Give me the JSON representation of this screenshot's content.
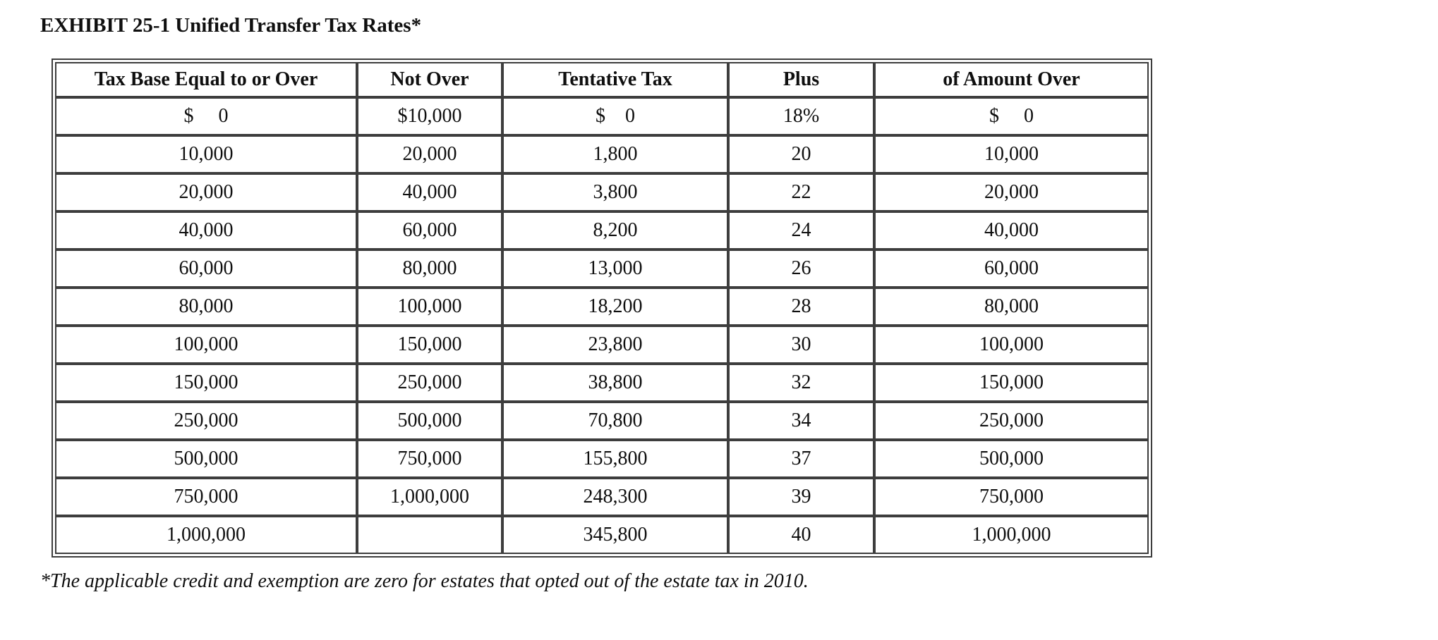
{
  "title": "EXHIBIT 25-1 Unified Transfer Tax Rates*",
  "footnote": "*The applicable credit and exemption are zero for estates that opted out of the estate tax in 2010.",
  "colors": {
    "border": "#3d3d3d",
    "text": "#0f0f0f",
    "background": "#ffffff"
  },
  "table": {
    "headers": [
      "Tax Base Equal to or Over",
      "Not Over",
      "Tentative Tax",
      "Plus",
      "of Amount Over"
    ],
    "rows": [
      [
        "$     0",
        "$10,000",
        "$    0",
        "18%",
        "$     0"
      ],
      [
        "10,000",
        "20,000",
        "1,800",
        "20",
        "10,000"
      ],
      [
        "20,000",
        "40,000",
        "3,800",
        "22",
        "20,000"
      ],
      [
        "40,000",
        "60,000",
        "8,200",
        "24",
        "40,000"
      ],
      [
        "60,000",
        "80,000",
        "13,000",
        "26",
        "60,000"
      ],
      [
        "80,000",
        "100,000",
        "18,200",
        "28",
        "80,000"
      ],
      [
        "100,000",
        "150,000",
        "23,800",
        "30",
        "100,000"
      ],
      [
        "150,000",
        "250,000",
        "38,800",
        "32",
        "150,000"
      ],
      [
        "250,000",
        "500,000",
        "70,800",
        "34",
        "250,000"
      ],
      [
        "500,000",
        "750,000",
        "155,800",
        "37",
        "500,000"
      ],
      [
        "750,000",
        "1,000,000",
        "248,300",
        "39",
        "750,000"
      ],
      [
        "1,000,000",
        "",
        "345,800",
        "40",
        "1,000,000"
      ]
    ]
  }
}
